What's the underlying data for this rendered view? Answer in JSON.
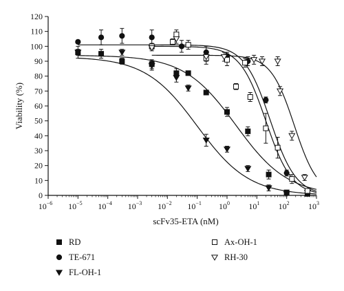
{
  "chart_data": {
    "type": "scatter",
    "title": "",
    "xlabel": "scFv35-ETA (nM)",
    "ylabel": "Viability (%)",
    "x_scale": "log",
    "xlim": [
      1e-06,
      1000
    ],
    "ylim": [
      0,
      120
    ],
    "x_tick_base": "10",
    "x_tick_exponents": [
      "−6",
      "−5",
      "−4",
      "−3",
      "−2",
      "−1",
      "0",
      "1",
      "2",
      "3"
    ],
    "y_ticks": [
      "0",
      "10",
      "20",
      "30",
      "40",
      "50",
      "60",
      "70",
      "80",
      "90",
      "100",
      "110",
      "120"
    ],
    "grid": false,
    "legend_position": "bottom",
    "series": [
      {
        "name": "RD",
        "marker": "square-filled",
        "points": [
          {
            "x": 1e-05,
            "y": 96,
            "err": 2
          },
          {
            "x": 6e-05,
            "y": 95,
            "err": 3
          },
          {
            "x": 0.0003,
            "y": 90,
            "err": 2
          },
          {
            "x": 0.003,
            "y": 88,
            "err": 3
          },
          {
            "x": 0.02,
            "y": 82,
            "err": 3
          },
          {
            "x": 0.05,
            "y": 82,
            "err": 1
          },
          {
            "x": 0.2,
            "y": 69,
            "err": 1
          },
          {
            "x": 1,
            "y": 56,
            "err": 3
          },
          {
            "x": 5,
            "y": 43,
            "err": 3
          },
          {
            "x": 25,
            "y": 14,
            "err": 3
          },
          {
            "x": 100,
            "y": 2,
            "err": 1
          },
          {
            "x": 500,
            "y": 1,
            "err": 1
          }
        ],
        "fit": {
          "top": 94,
          "bottom": 0,
          "ic50": 2,
          "hill": 0.5
        }
      },
      {
        "name": "TE-671",
        "marker": "circle-filled",
        "points": [
          {
            "x": 1e-05,
            "y": 103,
            "err": 1
          },
          {
            "x": 6e-05,
            "y": 106,
            "err": 5
          },
          {
            "x": 0.0003,
            "y": 107,
            "err": 5
          },
          {
            "x": 0.003,
            "y": 106,
            "err": 5
          },
          {
            "x": 0.03,
            "y": 100,
            "err": 4
          },
          {
            "x": 0.2,
            "y": 96,
            "err": 4
          },
          {
            "x": 1,
            "y": 93,
            "err": 3
          },
          {
            "x": 5,
            "y": 90,
            "err": 3
          },
          {
            "x": 20,
            "y": 64,
            "err": 2
          },
          {
            "x": 100,
            "y": 15,
            "err": 2
          },
          {
            "x": 500,
            "y": 2,
            "err": 1
          }
        ],
        "fit": {
          "top": 101,
          "bottom": 0,
          "ic50": 28,
          "hill": 1.0
        }
      },
      {
        "name": "FL-OH-1",
        "marker": "triangle-down-filled",
        "points": [
          {
            "x": 1e-05,
            "y": 96,
            "err": 4
          },
          {
            "x": 0.0003,
            "y": 96,
            "err": 2
          },
          {
            "x": 0.003,
            "y": 87,
            "err": 3
          },
          {
            "x": 0.02,
            "y": 79,
            "err": 3
          },
          {
            "x": 0.05,
            "y": 72,
            "err": 2
          },
          {
            "x": 0.2,
            "y": 37,
            "err": 4
          },
          {
            "x": 1,
            "y": 31,
            "err": 2
          },
          {
            "x": 5,
            "y": 18,
            "err": 2
          },
          {
            "x": 25,
            "y": 5,
            "err": 2
          },
          {
            "x": 100,
            "y": 1,
            "err": 1
          },
          {
            "x": 500,
            "y": 2,
            "err": 1
          }
        ],
        "fit": {
          "top": 93,
          "bottom": 0,
          "ic50": 0.1,
          "hill": 0.5
        }
      },
      {
        "name": "Ax-OH-1",
        "marker": "square-open",
        "points": [
          {
            "x": 0.003,
            "y": 100,
            "err": 2
          },
          {
            "x": 0.015,
            "y": 103,
            "err": 2
          },
          {
            "x": 0.02,
            "y": 108,
            "err": 3
          },
          {
            "x": 0.05,
            "y": 101,
            "err": 3
          },
          {
            "x": 0.2,
            "y": 92,
            "err": 4
          },
          {
            "x": 1,
            "y": 91,
            "err": 4
          },
          {
            "x": 2,
            "y": 73,
            "err": 2
          },
          {
            "x": 4,
            "y": 89,
            "err": 3
          },
          {
            "x": 6,
            "y": 66,
            "err": 3
          },
          {
            "x": 20,
            "y": 45,
            "err": 10
          },
          {
            "x": 50,
            "y": 32,
            "err": 7
          },
          {
            "x": 150,
            "y": 11,
            "err": 3
          },
          {
            "x": 500,
            "y": 3,
            "err": 1
          }
        ],
        "fit": {
          "top": 100,
          "bottom": 0,
          "ic50": 20,
          "hill": 1.0
        }
      },
      {
        "name": "RH-30",
        "marker": "triangle-down-open",
        "points": [
          {
            "x": 0.003,
            "y": 99,
            "err": 2
          },
          {
            "x": 0.02,
            "y": 105,
            "err": 3
          },
          {
            "x": 0.2,
            "y": 93,
            "err": 3
          },
          {
            "x": 0.8,
            "y": 93,
            "err": 3
          },
          {
            "x": 8,
            "y": 91,
            "err": 3
          },
          {
            "x": 15,
            "y": 90,
            "err": 3
          },
          {
            "x": 50,
            "y": 90,
            "err": 3
          },
          {
            "x": 60,
            "y": 70,
            "err": 3
          },
          {
            "x": 150,
            "y": 40,
            "err": 3
          },
          {
            "x": 400,
            "y": 12,
            "err": 2
          }
        ],
        "fit": {
          "top": 94,
          "bottom": 0,
          "ic50": 180,
          "hill": 1.1
        }
      }
    ]
  }
}
